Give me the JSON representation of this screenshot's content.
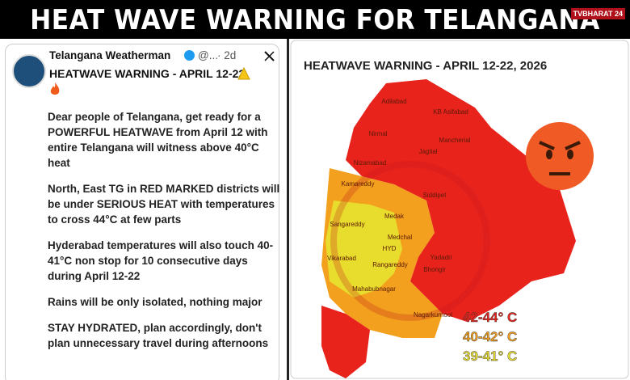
{
  "header": {
    "title": "HEAT WAVE WARNING FOR TELANGANA",
    "logo": "TVBHARAT 24"
  },
  "tweet": {
    "author": "Telangana Weatherman",
    "handle": "@...",
    "time": "· 2d",
    "headline": "HEATWAVE WARNING - APRIL 12-22",
    "paragraphs": [
      "Dear people of Telangana, get ready for a POWERFUL HEATWAVE from April 12 with entire Telangana will witness above 40°C heat",
      "North, East TG in RED MARKED districts will be under SERIOUS HEAT with temperatures to cross 44°C at few parts",
      "Hyderabad temperatures will also touch 40-41°C non stop for 10 consecutive days during April 12-22",
      "Rains will be only isolated, nothing major",
      "STAY HYDRATED, plan accordingly, don't plan unnecessary travel during afternoons"
    ]
  },
  "map": {
    "title": "HEATWAVE WARNING - APRIL 12-22, 2026",
    "districts": [
      "Adilabad",
      "KB Asifabad",
      "Nirmal",
      "Mancherial",
      "Jagtial",
      "Nizamabad",
      "Kamareddy",
      "Medak",
      "Siddipet",
      "Sangareddy",
      "Vikarabad",
      "Medchal",
      "HYD",
      "Yadadri",
      "Bhongir",
      "Rangareddy",
      "Mahabubnagar",
      "Nagarkurnool"
    ],
    "legend": [
      {
        "label": "42-44° C",
        "color": "#e8231c"
      },
      {
        "label": "40-42° C",
        "color": "#f2a01e"
      },
      {
        "label": "39-41° C",
        "color": "#e8dc2c"
      }
    ]
  }
}
